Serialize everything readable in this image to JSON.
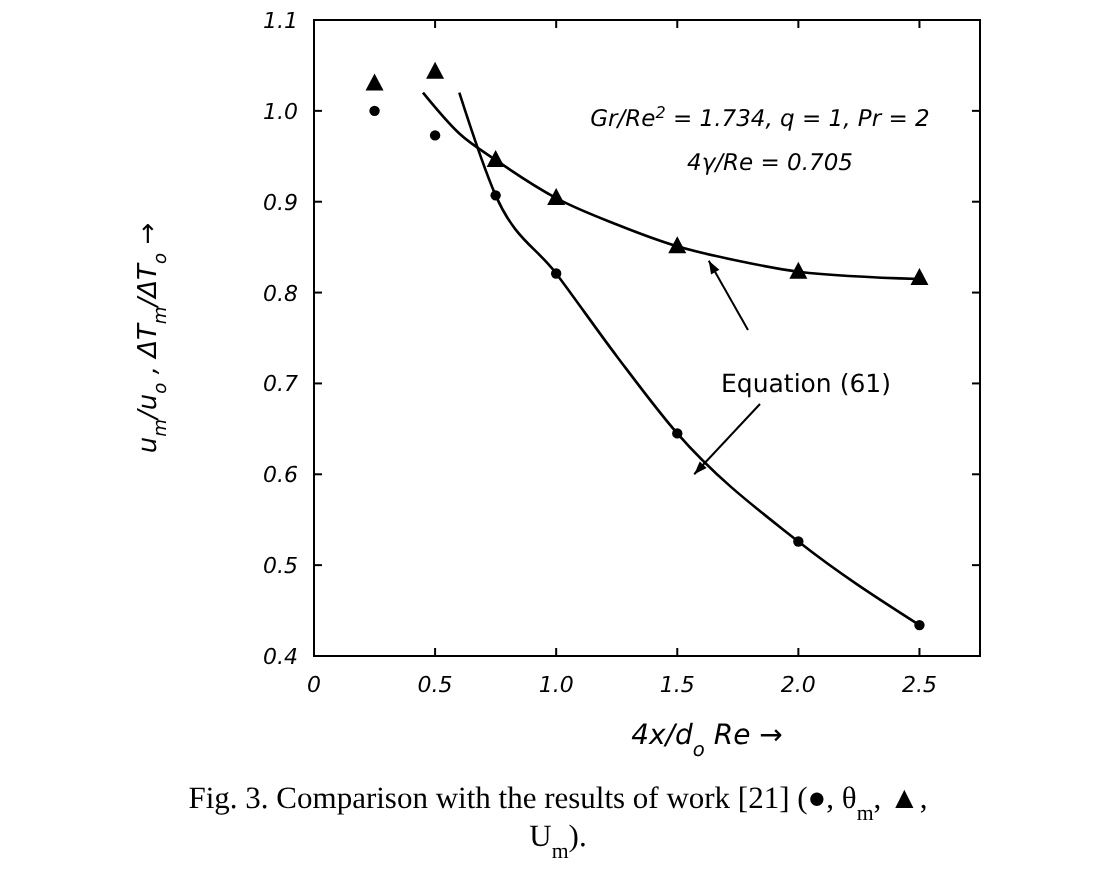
{
  "chart_data": {
    "type": "scatter",
    "xlabel": "4x/d$_{o}$ Re →",
    "ylabel": "u$_{m}$/u$_{o}$ ,   ΔT$_{m}$/ΔT$_{o}$   →",
    "xlim": [
      0,
      2.75
    ],
    "ylim": [
      0.4,
      1.1
    ],
    "xticks": [
      0,
      0.5,
      {
        "value": 1,
        "label": "1.0"
      },
      1.5,
      {
        "value": 2,
        "label": "2.0"
      },
      2.5
    ],
    "yticks": [
      0.4,
      0.5,
      0.6,
      0.7,
      0.8,
      0.9,
      {
        "value": 1,
        "label": "1.0"
      },
      1.1
    ],
    "series": [
      {
        "marker": "triangle",
        "color": "#000000",
        "x": [
          0.25,
          0.5,
          0.75,
          1.0,
          1.5,
          2.0,
          2.5
        ],
        "values": [
          1.03,
          1.043,
          0.946,
          0.904,
          0.851,
          0.823,
          0.816
        ]
      },
      {
        "marker": "circle",
        "color": "#000000",
        "x": [
          0.25,
          0.5,
          0.75,
          1.0,
          1.5,
          2.0,
          2.5
        ],
        "values": [
          1.0,
          0.973,
          0.907,
          0.821,
          0.645,
          0.526,
          0.434
        ]
      },
      {
        "type": "line",
        "marker": "none",
        "color": "#000000",
        "x": [
          0.45,
          0.6,
          0.75,
          1.0,
          1.25,
          1.5,
          1.75,
          2.0,
          2.5
        ],
        "values": [
          1.02,
          0.975,
          0.946,
          0.904,
          0.875,
          0.851,
          0.835,
          0.823,
          0.815
        ]
      },
      {
        "type": "line",
        "marker": "none",
        "color": "#000000",
        "x": [
          0.6,
          0.75,
          1.0,
          1.25,
          1.5,
          2.0,
          2.5
        ],
        "values": [
          1.02,
          0.907,
          0.821,
          0.73,
          0.645,
          0.526,
          0.434
        ]
      }
    ],
    "annotations": [
      "Gr/Re$^{2}$ = 1.734,  q = 1,  Pr = 2",
      "4γ/Re = 0.705",
      "Equation (61)",
      "Fig. 3. Comparison with the results of work [21] (●, θ$_{m}$, ▲, U$_{m}$)."
    ]
  }
}
